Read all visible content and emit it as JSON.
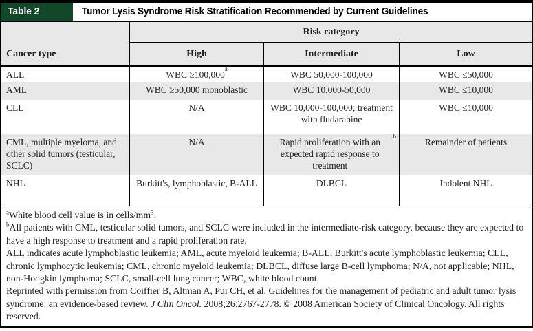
{
  "colors": {
    "badge_green": "#11482a",
    "header_gray": "#e8e8e8",
    "rule_black": "#000000"
  },
  "header": {
    "table_label": "Table 2",
    "title": "Tumor Lysis Syndrome Risk Stratification Recommended by Current Guidelines"
  },
  "table": {
    "risk_category_header": "Risk category",
    "columns": [
      "Cancer type",
      "High",
      "Intermediate",
      "Low"
    ],
    "rows": [
      {
        "cancer_type": "ALL",
        "high": {
          "text": "WBC ≥100,000",
          "sup": "a"
        },
        "intermediate": "WBC 50,000-100,000",
        "low": "WBC ≤50,000"
      },
      {
        "cancer_type": "AML",
        "high": "WBC ≥50,000 monoblastic",
        "intermediate": "WBC 10,000-50,000",
        "low": "WBC ≤10,000"
      },
      {
        "cancer_type": "CLL",
        "high": "N/A",
        "intermediate": "WBC 10,000-100,000; treatment with fludarabine",
        "low": "WBC ≤10,000"
      },
      {
        "cancer_type": "CML, multiple myeloma, and other solid tumors (testicular, SCLC)",
        "high": "N/A",
        "intermediate": {
          "text": "Rapid proliferation with an expected rapid response to treatment",
          "sup": "b"
        },
        "low": "Remainder of patients"
      },
      {
        "cancer_type": "NHL",
        "high": "Burkitt's, lymphoblastic, B-ALL",
        "intermediate": "DLBCL",
        "low": "Indolent NHL"
      }
    ]
  },
  "footnotes": {
    "a": {
      "marker": "a",
      "text": "White blood cell value is in cells/mm",
      "sup": "3",
      "tail": "."
    },
    "b": {
      "marker": "b",
      "text": "All patients with CML, testicular solid tumors, and SCLC were included in the intermediate-risk category, because they are expected to have a high response to treatment and a rapid proliferation rate."
    },
    "abbreviations": "ALL indicates acute lymphoblastic leukemia; AML, acute myeloid leukemia; B-ALL, Burkitt's acute lymphoblastic leukemia; CLL, chronic lymphocytic leukemia; CML, chronic myeloid leukemia; DLBCL, diffuse large B-cell lymphoma; N/A, not applicable; NHL, non-Hodgkin lymphoma; SCLC, small-cell lung cancer; WBC, white blood count.",
    "reprint": {
      "pre": "Reprinted with permission from Coiffier B, Altman A, Pui CH, et al. Guidelines for the management of pediatric and adult tumor lysis syndrome: an evidence-based review. ",
      "journal": "J Clin Oncol.",
      "post": " 2008;26:2767-2778. © 2008 American Society of Clinical Oncology. All rights reserved."
    }
  }
}
